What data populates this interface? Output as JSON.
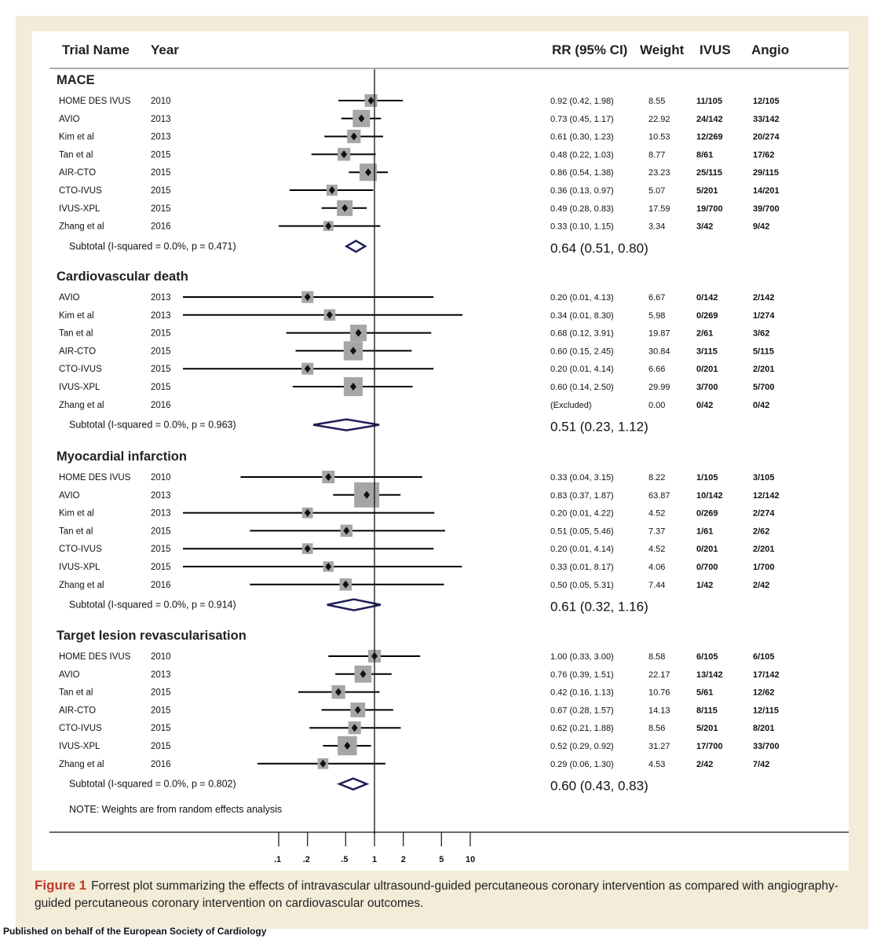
{
  "columns": {
    "trial": "Trial Name",
    "year": "Year",
    "rr": "RR (95% CI)",
    "weight": "Weight",
    "ivus": "IVUS",
    "angio": "Angio"
  },
  "note": "NOTE: Weights are from random effects analysis",
  "axis_ticks": [
    {
      "label": ".1",
      "value": 0.1
    },
    {
      "label": ".2",
      "value": 0.2
    },
    {
      "label": ".5",
      "value": 0.5
    },
    {
      "label": "1",
      "value": 1
    },
    {
      "label": "2",
      "value": 2
    },
    {
      "label": "5",
      "value": 5
    },
    {
      "label": "10",
      "value": 10
    }
  ],
  "caption": {
    "label": "Figure 1",
    "text": "Forrest plot summarizing the effects of intravascular ultrasound-guided percutaneous coronary intervention as compared with angiography-guided percutaneous coronary intervention on cardiovascular outcomes."
  },
  "publisher": "Published on behalf of the European Society of Cardiology",
  "colors": {
    "diamond": "#1f1f5a",
    "box": "#a6a6a6",
    "line": "#000000",
    "frame": "#f2ecd8",
    "caption_label": "#c0392b"
  },
  "chart_data": {
    "type": "forest",
    "scale": "log",
    "groups": [
      {
        "name": "MACE",
        "studies": [
          {
            "trial": "HOME DES IVUS",
            "year": "2010",
            "rr": 0.92,
            "lo": 0.42,
            "hi": 1.98,
            "rr_text": "0.92 (0.42, 1.98)",
            "weight": "8.55",
            "ivus": "11/105",
            "angio": "12/105"
          },
          {
            "trial": "AVIO",
            "year": "2013",
            "rr": 0.73,
            "lo": 0.45,
            "hi": 1.17,
            "rr_text": "0.73 (0.45, 1.17)",
            "weight": "22.92",
            "ivus": "24/142",
            "angio": "33/142"
          },
          {
            "trial": "Kim et al",
            "year": "2013",
            "rr": 0.61,
            "lo": 0.3,
            "hi": 1.23,
            "rr_text": "0.61 (0.30, 1.23)",
            "weight": "10.53",
            "ivus": "12/269",
            "angio": "20/274"
          },
          {
            "trial": "Tan et al",
            "year": "2015",
            "rr": 0.48,
            "lo": 0.22,
            "hi": 1.03,
            "rr_text": "0.48 (0.22, 1.03)",
            "weight": "8.77",
            "ivus": "8/61",
            "angio": "17/62"
          },
          {
            "trial": "AIR-CTO",
            "year": "2015",
            "rr": 0.86,
            "lo": 0.54,
            "hi": 1.38,
            "rr_text": "0.86 (0.54, 1.38)",
            "weight": "23.23",
            "ivus": "25/115",
            "angio": "29/115"
          },
          {
            "trial": "CTO-IVUS",
            "year": "2015",
            "rr": 0.36,
            "lo": 0.13,
            "hi": 0.97,
            "rr_text": "0.36 (0.13, 0.97)",
            "weight": "5.07",
            "ivus": "5/201",
            "angio": "14/201"
          },
          {
            "trial": "IVUS-XPL",
            "year": "2015",
            "rr": 0.49,
            "lo": 0.28,
            "hi": 0.83,
            "rr_text": "0.49 (0.28, 0.83)",
            "weight": "17.59",
            "ivus": "19/700",
            "angio": "39/700"
          },
          {
            "trial": "Zhang et al",
            "year": "2016",
            "rr": 0.33,
            "lo": 0.1,
            "hi": 1.15,
            "rr_text": "0.33 (0.10, 1.15)",
            "weight": "3.34",
            "ivus": "3/42",
            "angio": "9/42"
          }
        ],
        "subtotal": {
          "label": "Subtotal  (I-squared = 0.0%, p = 0.471)",
          "rr": 0.64,
          "lo": 0.51,
          "hi": 0.8,
          "rr_text": "0.64 (0.51, 0.80)"
        }
      },
      {
        "name": "Cardiovascular death",
        "studies": [
          {
            "trial": "AVIO",
            "year": "2013",
            "rr": 0.2,
            "lo": 0.01,
            "hi": 4.13,
            "rr_text": "0.20 (0.01, 4.13)",
            "weight": "6.67",
            "ivus": "0/142",
            "angio": "2/142"
          },
          {
            "trial": "Kim et al",
            "year": "2013",
            "rr": 0.34,
            "lo": 0.01,
            "hi": 8.3,
            "rr_text": "0.34 (0.01, 8.30)",
            "weight": "5.98",
            "ivus": "0/269",
            "angio": "1/274"
          },
          {
            "trial": "Tan et al",
            "year": "2015",
            "rr": 0.68,
            "lo": 0.12,
            "hi": 3.91,
            "rr_text": "0.68 (0.12, 3.91)",
            "weight": "19.87",
            "ivus": "2/61",
            "angio": "3/62"
          },
          {
            "trial": "AIR-CTO",
            "year": "2015",
            "rr": 0.6,
            "lo": 0.15,
            "hi": 2.45,
            "rr_text": "0.60 (0.15, 2.45)",
            "weight": "30.84",
            "ivus": "3/115",
            "angio": "5/115"
          },
          {
            "trial": "CTO-IVUS",
            "year": "2015",
            "rr": 0.2,
            "lo": 0.01,
            "hi": 4.14,
            "rr_text": "0.20 (0.01, 4.14)",
            "weight": "6.66",
            "ivus": "0/201",
            "angio": "2/201"
          },
          {
            "trial": "IVUS-XPL",
            "year": "2015",
            "rr": 0.6,
            "lo": 0.14,
            "hi": 2.5,
            "rr_text": "0.60 (0.14, 2.50)",
            "weight": "29.99",
            "ivus": "3/700",
            "angio": "5/700"
          },
          {
            "trial": "Zhang et al",
            "year": "2016",
            "rr": null,
            "lo": null,
            "hi": null,
            "rr_text": "(Excluded)",
            "weight": "0.00",
            "ivus": "0/42",
            "angio": "0/42"
          }
        ],
        "subtotal": {
          "label": "Subtotal  (I-squared = 0.0%, p = 0.963)",
          "rr": 0.51,
          "lo": 0.23,
          "hi": 1.12,
          "rr_text": "0.51 (0.23, 1.12)"
        }
      },
      {
        "name": "Myocardial infarction",
        "studies": [
          {
            "trial": "HOME DES IVUS",
            "year": "2010",
            "rr": 0.33,
            "lo": 0.04,
            "hi": 3.15,
            "rr_text": "0.33 (0.04, 3.15)",
            "weight": "8.22",
            "ivus": "1/105",
            "angio": "3/105"
          },
          {
            "trial": "AVIO",
            "year": "2013",
            "rr": 0.83,
            "lo": 0.37,
            "hi": 1.87,
            "rr_text": "0.83 (0.37, 1.87)",
            "weight": "63.87",
            "ivus": "10/142",
            "angio": "12/142"
          },
          {
            "trial": "Kim et al",
            "year": "2013",
            "rr": 0.2,
            "lo": 0.01,
            "hi": 4.22,
            "rr_text": "0.20 (0.01, 4.22)",
            "weight": "4.52",
            "ivus": "0/269",
            "angio": "2/274"
          },
          {
            "trial": "Tan et al",
            "year": "2015",
            "rr": 0.51,
            "lo": 0.05,
            "hi": 5.46,
            "rr_text": "0.51 (0.05, 5.46)",
            "weight": "7.37",
            "ivus": "1/61",
            "angio": "2/62"
          },
          {
            "trial": "CTO-IVUS",
            "year": "2015",
            "rr": 0.2,
            "lo": 0.01,
            "hi": 4.14,
            "rr_text": "0.20 (0.01, 4.14)",
            "weight": "4.52",
            "ivus": "0/201",
            "angio": "2/201"
          },
          {
            "trial": "IVUS-XPL",
            "year": "2015",
            "rr": 0.33,
            "lo": 0.01,
            "hi": 8.17,
            "rr_text": "0.33 (0.01, 8.17)",
            "weight": "4.06",
            "ivus": "0/700",
            "angio": "1/700"
          },
          {
            "trial": "Zhang et al",
            "year": "2016",
            "rr": 0.5,
            "lo": 0.05,
            "hi": 5.31,
            "rr_text": "0.50 (0.05, 5.31)",
            "weight": "7.44",
            "ivus": "1/42",
            "angio": "2/42"
          }
        ],
        "subtotal": {
          "label": "Subtotal  (I-squared = 0.0%, p = 0.914)",
          "rr": 0.61,
          "lo": 0.32,
          "hi": 1.16,
          "rr_text": "0.61 (0.32, 1.16)"
        }
      },
      {
        "name": "Target lesion revascularisation",
        "studies": [
          {
            "trial": "HOME DES IVUS",
            "year": "2010",
            "rr": 1.0,
            "lo": 0.33,
            "hi": 3.0,
            "rr_text": "1.00 (0.33, 3.00)",
            "weight": "8.58",
            "ivus": "6/105",
            "angio": "6/105"
          },
          {
            "trial": "AVIO",
            "year": "2013",
            "rr": 0.76,
            "lo": 0.39,
            "hi": 1.51,
            "rr_text": "0.76 (0.39, 1.51)",
            "weight": "22.17",
            "ivus": "13/142",
            "angio": "17/142"
          },
          {
            "trial": "Tan et al",
            "year": "2015",
            "rr": 0.42,
            "lo": 0.16,
            "hi": 1.13,
            "rr_text": "0.42 (0.16, 1.13)",
            "weight": "10.76",
            "ivus": "5/61",
            "angio": "12/62"
          },
          {
            "trial": "AIR-CTO",
            "year": "2015",
            "rr": 0.67,
            "lo": 0.28,
            "hi": 1.57,
            "rr_text": "0.67 (0.28, 1.57)",
            "weight": "14.13",
            "ivus": "8/115",
            "angio": "12/115"
          },
          {
            "trial": "CTO-IVUS",
            "year": "2015",
            "rr": 0.62,
            "lo": 0.21,
            "hi": 1.88,
            "rr_text": "0.62 (0.21, 1.88)",
            "weight": "8.56",
            "ivus": "5/201",
            "angio": "8/201"
          },
          {
            "trial": "IVUS-XPL",
            "year": "2015",
            "rr": 0.52,
            "lo": 0.29,
            "hi": 0.92,
            "rr_text": "0.52 (0.29, 0.92)",
            "weight": "31.27",
            "ivus": "17/700",
            "angio": "33/700"
          },
          {
            "trial": "Zhang et al",
            "year": "2016",
            "rr": 0.29,
            "lo": 0.06,
            "hi": 1.3,
            "rr_text": "0.29 (0.06, 1.30)",
            "weight": "4.53",
            "ivus": "2/42",
            "angio": "7/42"
          }
        ],
        "subtotal": {
          "label": "Subtotal  (I-squared = 0.0%, p = 0.802)",
          "rr": 0.6,
          "lo": 0.43,
          "hi": 0.83,
          "rr_text": "0.60 (0.43, 0.83)"
        }
      }
    ]
  }
}
